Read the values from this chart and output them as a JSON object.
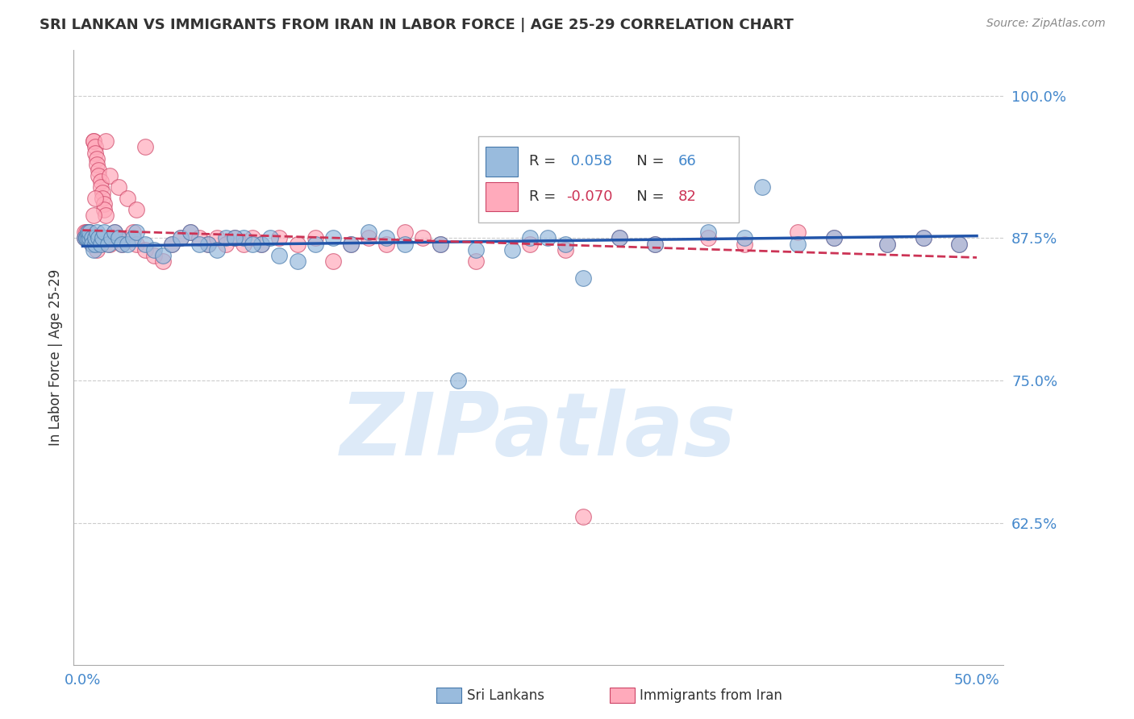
{
  "title": "SRI LANKAN VS IMMIGRANTS FROM IRAN IN LABOR FORCE | AGE 25-29 CORRELATION CHART",
  "source": "Source: ZipAtlas.com",
  "ylabel": "In Labor Force | Age 25-29",
  "ytick_labels": [
    "100.0%",
    "87.5%",
    "75.0%",
    "62.5%"
  ],
  "ytick_values": [
    1.0,
    0.875,
    0.75,
    0.625
  ],
  "xlim": [
    0.0,
    0.5
  ],
  "ylim": [
    0.5,
    1.04
  ],
  "legend_blue_r_label": "R = ",
  "legend_blue_r_val": " 0.058",
  "legend_blue_n_label": "   N = ",
  "legend_blue_n_val": "66",
  "legend_pink_r_label": "R = ",
  "legend_pink_r_val": "-0.070",
  "legend_pink_n_label": "   N = ",
  "legend_pink_n_val": "82",
  "legend_label_blue": "Sri Lankans",
  "legend_label_pink": "Immigrants from Iran",
  "blue_color": "#99BBDD",
  "pink_color": "#FFAABB",
  "blue_edge_color": "#4477AA",
  "pink_edge_color": "#CC4466",
  "trend_blue_color": "#2255AA",
  "trend_pink_color": "#CC3355",
  "label_color": "#4488CC",
  "watermark_text": "ZIPatlas",
  "watermark_color": "#AACCEE",
  "blue_x": [
    0.001,
    0.002,
    0.002,
    0.003,
    0.003,
    0.004,
    0.004,
    0.005,
    0.005,
    0.006,
    0.007,
    0.007,
    0.008,
    0.009,
    0.01,
    0.011,
    0.012,
    0.014,
    0.016,
    0.018,
    0.02,
    0.022,
    0.025,
    0.028,
    0.03,
    0.035,
    0.04,
    0.045,
    0.05,
    0.055,
    0.06,
    0.07,
    0.08,
    0.09,
    0.1,
    0.11,
    0.12,
    0.13,
    0.14,
    0.15,
    0.16,
    0.17,
    0.18,
    0.2,
    0.22,
    0.25,
    0.27,
    0.3,
    0.32,
    0.35,
    0.37,
    0.4,
    0.42,
    0.45,
    0.47,
    0.49,
    0.28,
    0.38,
    0.21,
    0.065,
    0.075,
    0.085,
    0.095,
    0.105,
    0.24,
    0.26
  ],
  "blue_y": [
    0.875,
    0.875,
    0.875,
    0.875,
    0.88,
    0.875,
    0.88,
    0.875,
    0.87,
    0.865,
    0.87,
    0.875,
    0.88,
    0.875,
    0.87,
    0.875,
    0.88,
    0.87,
    0.875,
    0.88,
    0.875,
    0.87,
    0.87,
    0.875,
    0.88,
    0.87,
    0.865,
    0.86,
    0.87,
    0.875,
    0.88,
    0.87,
    0.875,
    0.875,
    0.87,
    0.86,
    0.855,
    0.87,
    0.875,
    0.87,
    0.88,
    0.875,
    0.87,
    0.87,
    0.865,
    0.875,
    0.87,
    0.875,
    0.87,
    0.88,
    0.875,
    0.87,
    0.875,
    0.87,
    0.875,
    0.87,
    0.84,
    0.92,
    0.75,
    0.87,
    0.865,
    0.875,
    0.87,
    0.875,
    0.865,
    0.875
  ],
  "pink_x": [
    0.001,
    0.001,
    0.002,
    0.002,
    0.003,
    0.003,
    0.004,
    0.004,
    0.005,
    0.005,
    0.006,
    0.006,
    0.007,
    0.007,
    0.008,
    0.008,
    0.009,
    0.009,
    0.01,
    0.01,
    0.011,
    0.011,
    0.012,
    0.012,
    0.013,
    0.013,
    0.014,
    0.015,
    0.016,
    0.018,
    0.02,
    0.022,
    0.025,
    0.028,
    0.03,
    0.035,
    0.04,
    0.045,
    0.05,
    0.055,
    0.06,
    0.065,
    0.07,
    0.075,
    0.08,
    0.085,
    0.09,
    0.095,
    0.1,
    0.11,
    0.12,
    0.13,
    0.14,
    0.15,
    0.16,
    0.17,
    0.18,
    0.19,
    0.2,
    0.22,
    0.25,
    0.27,
    0.3,
    0.32,
    0.35,
    0.37,
    0.4,
    0.42,
    0.45,
    0.47,
    0.49,
    0.015,
    0.02,
    0.025,
    0.03,
    0.012,
    0.01,
    0.008,
    0.007,
    0.006,
    0.28,
    0.035
  ],
  "pink_y": [
    0.875,
    0.88,
    0.875,
    0.88,
    0.875,
    0.88,
    0.875,
    0.88,
    0.875,
    0.87,
    0.96,
    0.96,
    0.955,
    0.95,
    0.945,
    0.94,
    0.935,
    0.93,
    0.925,
    0.92,
    0.915,
    0.91,
    0.905,
    0.9,
    0.895,
    0.96,
    0.875,
    0.87,
    0.875,
    0.88,
    0.875,
    0.87,
    0.875,
    0.88,
    0.87,
    0.865,
    0.86,
    0.855,
    0.87,
    0.875,
    0.88,
    0.875,
    0.87,
    0.875,
    0.87,
    0.875,
    0.87,
    0.875,
    0.87,
    0.875,
    0.87,
    0.875,
    0.855,
    0.87,
    0.875,
    0.87,
    0.88,
    0.875,
    0.87,
    0.855,
    0.87,
    0.865,
    0.875,
    0.87,
    0.875,
    0.87,
    0.88,
    0.875,
    0.87,
    0.875,
    0.87,
    0.93,
    0.92,
    0.91,
    0.9,
    0.875,
    0.87,
    0.865,
    0.91,
    0.895,
    0.63,
    0.955
  ],
  "blue_trend_x": [
    0.0,
    0.5
  ],
  "blue_trend_y": [
    0.868,
    0.877
  ],
  "pink_trend_x": [
    0.0,
    0.5
  ],
  "pink_trend_y": [
    0.882,
    0.858
  ]
}
